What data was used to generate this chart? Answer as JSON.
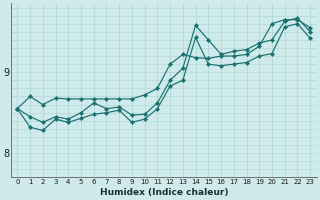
{
  "xlabel": "Humidex (Indice chaleur)",
  "xlim": [
    -0.5,
    23.5
  ],
  "ylim": [
    7.7,
    9.85
  ],
  "yticks": [
    8,
    9
  ],
  "xticks": [
    0,
    1,
    2,
    3,
    4,
    5,
    6,
    7,
    8,
    9,
    10,
    11,
    12,
    13,
    14,
    15,
    16,
    17,
    18,
    19,
    20,
    21,
    22,
    23
  ],
  "bg_color": "#ceeaea",
  "line_color": "#1a7070",
  "grid_color": "#aed4d4",
  "lines": [
    [
      0,
      8.55,
      1,
      8.7,
      2,
      8.6,
      3,
      8.68,
      4,
      8.67,
      5,
      8.67,
      6,
      8.67,
      7,
      8.67,
      8,
      8.67,
      9,
      8.67,
      10,
      8.72,
      11,
      8.8,
      12,
      9.1,
      13,
      9.22,
      14,
      9.18,
      15,
      9.17,
      16,
      9.2,
      17,
      9.2,
      18,
      9.22,
      19,
      9.32,
      20,
      9.6,
      21,
      9.65,
      22,
      9.65,
      23,
      9.55
    ],
    [
      0,
      8.55,
      1,
      8.45,
      2,
      8.38,
      3,
      8.45,
      4,
      8.42,
      5,
      8.5,
      6,
      8.62,
      7,
      8.55,
      8,
      8.57,
      9,
      8.47,
      10,
      8.48,
      11,
      8.62,
      12,
      8.9,
      13,
      9.05,
      14,
      9.58,
      15,
      9.4,
      16,
      9.22,
      17,
      9.26,
      18,
      9.28,
      19,
      9.36,
      20,
      9.4,
      21,
      9.63,
      22,
      9.67,
      23,
      9.5
    ],
    [
      0,
      8.55,
      1,
      8.32,
      2,
      8.28,
      3,
      8.42,
      4,
      8.38,
      5,
      8.43,
      6,
      8.48,
      7,
      8.5,
      8,
      8.53,
      9,
      8.38,
      10,
      8.42,
      11,
      8.55,
      12,
      8.83,
      13,
      8.9,
      14,
      9.43,
      15,
      9.1,
      16,
      9.08,
      17,
      9.1,
      18,
      9.12,
      19,
      9.2,
      20,
      9.23,
      21,
      9.56,
      22,
      9.6,
      23,
      9.42
    ]
  ]
}
